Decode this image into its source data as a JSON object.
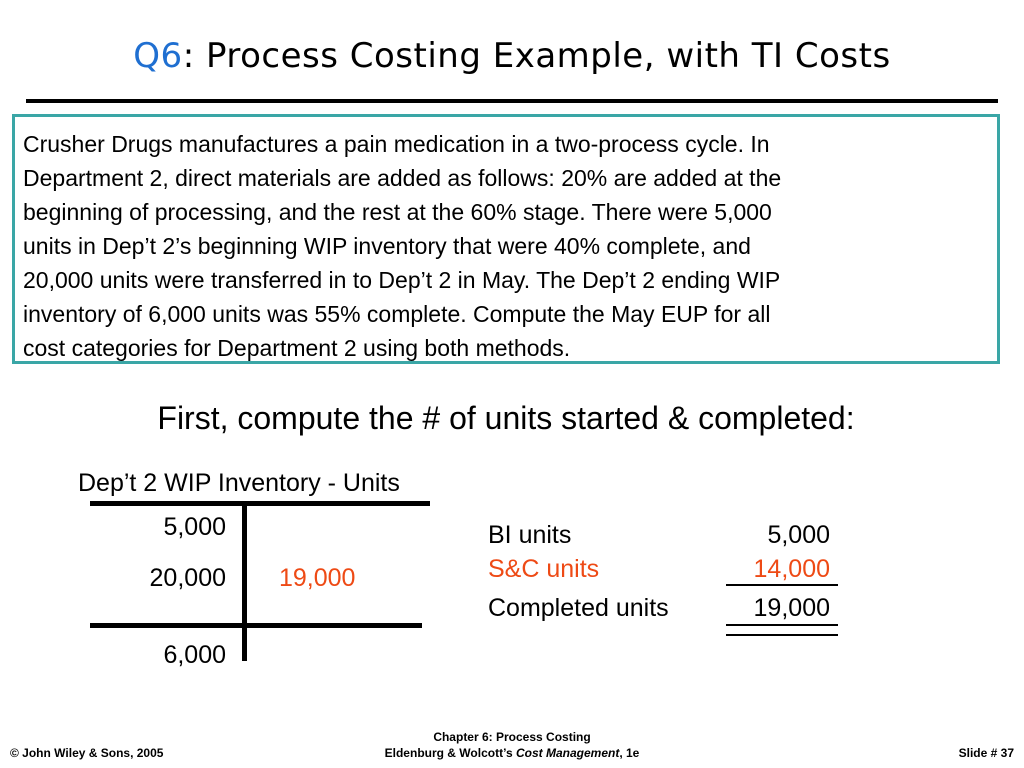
{
  "slide": {
    "title_prefix": "Q6",
    "title_text": ": Process Costing Example, with TI Costs"
  },
  "problem": {
    "lines": [
      "Crusher Drugs manufactures a pain medication in a two-process cycle.  In",
      "Department 2, direct materials are added as follows: 20% are added at the",
      "beginning of processing, and the rest at the 60% stage.  There were 5,000",
      "units in Dep’t 2’s beginning WIP inventory that were 40% complete, and",
      "20,000 units were transferred in to Dep’t 2 in May.  The Dep’t 2 ending WIP",
      "inventory of 6,000 units was 55% complete.  Compute the May EUP for all",
      "cost categories for Department 2 using both methods."
    ]
  },
  "heading": "First, compute the # of units started & completed:",
  "t_account": {
    "title": "Dep’t 2 WIP Inventory - Units",
    "debit_beginning": "5,000",
    "debit_transferred_in": "20,000",
    "credit_completed": "19,000",
    "debit_ending": "6,000"
  },
  "summary": {
    "rows": [
      {
        "label": "BI units",
        "value": "5,000"
      },
      {
        "label": "S&C units",
        "value": "14,000"
      },
      {
        "label": "Completed units",
        "value": "19,000"
      }
    ]
  },
  "footer": {
    "copyright": "© John Wiley & Sons, 2005",
    "chapter": "Chapter 6: Process Costing",
    "book_prefix": "Eldenburg & Wolcott’s ",
    "book_title": "Cost Management",
    "book_edition": ", 1e",
    "slide_number": "Slide #  37"
  },
  "colors": {
    "title_prefix": "#1f6fd1",
    "highlight": "#ee4a15",
    "box_border": "#3aa6a6"
  }
}
